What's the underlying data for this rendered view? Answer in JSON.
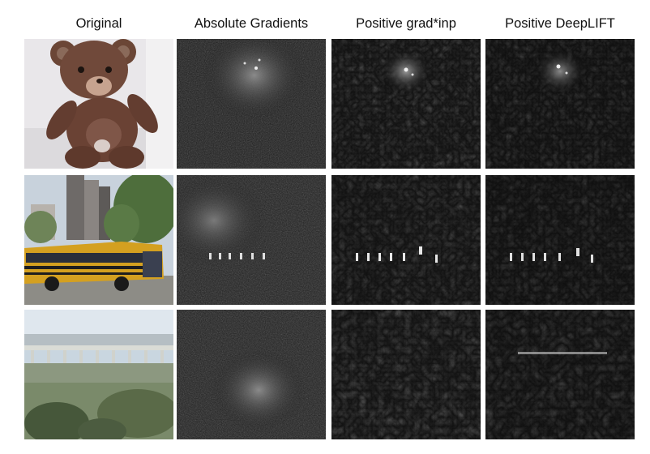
{
  "columns": [
    {
      "title": "Original"
    },
    {
      "title": "Absolute Gradients"
    },
    {
      "title": "Positive grad*inp"
    },
    {
      "title": "Positive DeepLIFT"
    }
  ],
  "rows": [
    {
      "subject": "teddy-bear"
    },
    {
      "subject": "school-bus"
    },
    {
      "subject": "bridge-landscape"
    }
  ],
  "colors": {
    "background": "#ffffff",
    "map_background": "#141414",
    "map_highlight": "#e6e6e6"
  }
}
